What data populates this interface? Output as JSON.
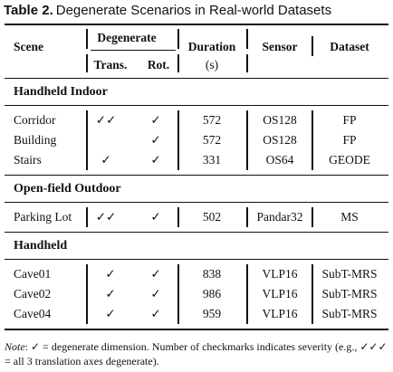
{
  "caption": {
    "label": "Table 2.",
    "text": "Degenerate Scenarios in Real-world Datasets"
  },
  "headers": {
    "scene": "Scene",
    "degenerate": "Degenerate",
    "trans": "Trans.",
    "rot": "Rot.",
    "duration": "Duration",
    "duration_unit": "(s)",
    "sensor": "Sensor",
    "dataset": "Dataset"
  },
  "sections": [
    {
      "title": "Handheld Indoor",
      "rows": [
        {
          "scene": "Corridor",
          "trans": "✓✓",
          "rot": "✓",
          "duration": "572",
          "sensor": "OS128",
          "dataset": "FP"
        },
        {
          "scene": "Building",
          "trans": "",
          "rot": "✓",
          "duration": "572",
          "sensor": "OS128",
          "dataset": "FP"
        },
        {
          "scene": "Stairs",
          "trans": "✓",
          "rot": "✓",
          "duration": "331",
          "sensor": "OS64",
          "dataset": "GEODE"
        }
      ]
    },
    {
      "title": "Open-field Outdoor",
      "rows": [
        {
          "scene": "Parking Lot",
          "trans": "✓✓",
          "rot": "✓",
          "duration": "502",
          "sensor": "Pandar32",
          "dataset": "MS"
        }
      ]
    },
    {
      "title": "Handheld",
      "rows": [
        {
          "scene": "Cave01",
          "trans": "✓",
          "rot": "✓",
          "duration": "838",
          "sensor": "VLP16",
          "dataset": "SubT-MRS"
        },
        {
          "scene": "Cave02",
          "trans": "✓",
          "rot": "✓",
          "duration": "986",
          "sensor": "VLP16",
          "dataset": "SubT-MRS"
        },
        {
          "scene": "Cave04",
          "trans": "✓",
          "rot": "✓",
          "duration": "959",
          "sensor": "VLP16",
          "dataset": "SubT-MRS"
        }
      ]
    }
  ],
  "note": {
    "label": "Note",
    "text": ": ✓ = degenerate dimension. Number of checkmarks indicates severity (e.g., ✓✓✓ = all 3 translation axes degenerate)."
  }
}
